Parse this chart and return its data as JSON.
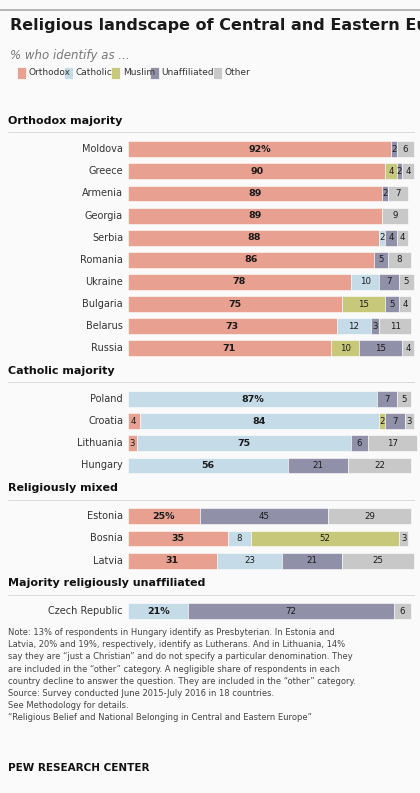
{
  "title": "Religious landscape of Central and Eastern Europe",
  "subtitle": "% who identify as ...",
  "colors": {
    "Orthodox": "#E8A090",
    "Catholic": "#C5DCE8",
    "Muslim": "#C8C87A",
    "Unaffiliated": "#9090A8",
    "Other": "#C8C8C8"
  },
  "sections": [
    {
      "name": "Orthodox majority",
      "countries": [
        {
          "name": "Moldova",
          "Orthodox": 92,
          "Catholic": 0,
          "Muslim": 0,
          "Unaffiliated": 2,
          "Other": 6,
          "label_val": "92%",
          "label_cat": "Orthodox"
        },
        {
          "name": "Greece",
          "Orthodox": 90,
          "Catholic": 0,
          "Muslim": 4,
          "Unaffiliated": 2,
          "Other": 4,
          "label_val": "90",
          "label_cat": "Orthodox"
        },
        {
          "name": "Armenia",
          "Orthodox": 89,
          "Catholic": 0,
          "Muslim": 0,
          "Unaffiliated": 2,
          "Other": 7,
          "label_val": "89",
          "label_cat": "Orthodox"
        },
        {
          "name": "Georgia",
          "Orthodox": 89,
          "Catholic": 0,
          "Muslim": 0,
          "Unaffiliated": 0,
          "Other": 9,
          "label_val": "89",
          "label_cat": "Orthodox"
        },
        {
          "name": "Serbia",
          "Orthodox": 88,
          "Catholic": 2,
          "Muslim": 0,
          "Unaffiliated": 4,
          "Other": 4,
          "label_val": "88",
          "label_cat": "Orthodox"
        },
        {
          "name": "Romania",
          "Orthodox": 86,
          "Catholic": 0,
          "Muslim": 0,
          "Unaffiliated": 5,
          "Other": 8,
          "label_val": "86",
          "label_cat": "Orthodox"
        },
        {
          "name": "Ukraine",
          "Orthodox": 78,
          "Catholic": 10,
          "Muslim": 0,
          "Unaffiliated": 7,
          "Other": 5,
          "label_val": "78",
          "label_cat": "Orthodox"
        },
        {
          "name": "Bulgaria",
          "Orthodox": 75,
          "Catholic": 0,
          "Muslim": 15,
          "Unaffiliated": 5,
          "Other": 4,
          "label_val": "75",
          "label_cat": "Orthodox"
        },
        {
          "name": "Belarus",
          "Orthodox": 73,
          "Catholic": 12,
          "Muslim": 0,
          "Unaffiliated": 3,
          "Other": 11,
          "label_val": "73",
          "label_cat": "Orthodox"
        },
        {
          "name": "Russia",
          "Orthodox": 71,
          "Catholic": 0,
          "Muslim": 10,
          "Unaffiliated": 15,
          "Other": 4,
          "label_val": "71",
          "label_cat": "Orthodox"
        }
      ]
    },
    {
      "name": "Catholic majority",
      "countries": [
        {
          "name": "Poland",
          "Orthodox": 0,
          "Catholic": 87,
          "Muslim": 0,
          "Unaffiliated": 7,
          "Other": 5,
          "label_val": "87%",
          "label_cat": "Catholic"
        },
        {
          "name": "Croatia",
          "Orthodox": 4,
          "Catholic": 84,
          "Muslim": 2,
          "Unaffiliated": 7,
          "Other": 3,
          "label_val": "84",
          "label_cat": "Catholic"
        },
        {
          "name": "Lithuania",
          "Orthodox": 3,
          "Catholic": 75,
          "Muslim": 0,
          "Unaffiliated": 6,
          "Other": 17,
          "label_val": "75",
          "label_cat": "Catholic"
        },
        {
          "name": "Hungary",
          "Orthodox": 0,
          "Catholic": 56,
          "Muslim": 0,
          "Unaffiliated": 21,
          "Other": 22,
          "label_val": "56",
          "label_cat": "Catholic"
        }
      ]
    },
    {
      "name": "Religiously mixed",
      "countries": [
        {
          "name": "Estonia",
          "Orthodox": 25,
          "Catholic": 0,
          "Muslim": 0,
          "Unaffiliated": 45,
          "Other": 29,
          "label_val": "25%",
          "label_cat": "Orthodox"
        },
        {
          "name": "Bosnia",
          "Orthodox": 35,
          "Catholic": 8,
          "Muslim": 52,
          "Unaffiliated": 0,
          "Other": 3,
          "label_val": "35",
          "label_cat": "Orthodox"
        },
        {
          "name": "Latvia",
          "Orthodox": 31,
          "Catholic": 23,
          "Muslim": 0,
          "Unaffiliated": 21,
          "Other": 25,
          "label_val": "31",
          "label_cat": "Orthodox"
        }
      ]
    },
    {
      "name": "Majority religiously unaffiliated",
      "countries": [
        {
          "name": "Czech Republic",
          "Orthodox": 0,
          "Catholic": 21,
          "Muslim": 0,
          "Unaffiliated": 72,
          "Other": 6,
          "label_val": "21%",
          "label_cat": "Catholic"
        }
      ]
    }
  ],
  "note_text": "Note: 13% of respondents in Hungary identify as Presbyterian. In Estonia and\nLatvia, 20% and 19%, respectively, identify as Lutherans. And in Lithuania, 14%\nsay they are “just a Christian” and do not specify a particular denomination. They\nare included in the “other” category. A negligible share of respondents in each\ncountry decline to answer the question. They are included in the “other” category.\nSource: Survey conducted June 2015-July 2016 in 18 countries.\nSee Methodology for details.\n“Religious Belief and National Belonging in Central and Eastern Europe”",
  "footer": "PEW RESEARCH CENTER",
  "bg_color": "#FAFAFA"
}
